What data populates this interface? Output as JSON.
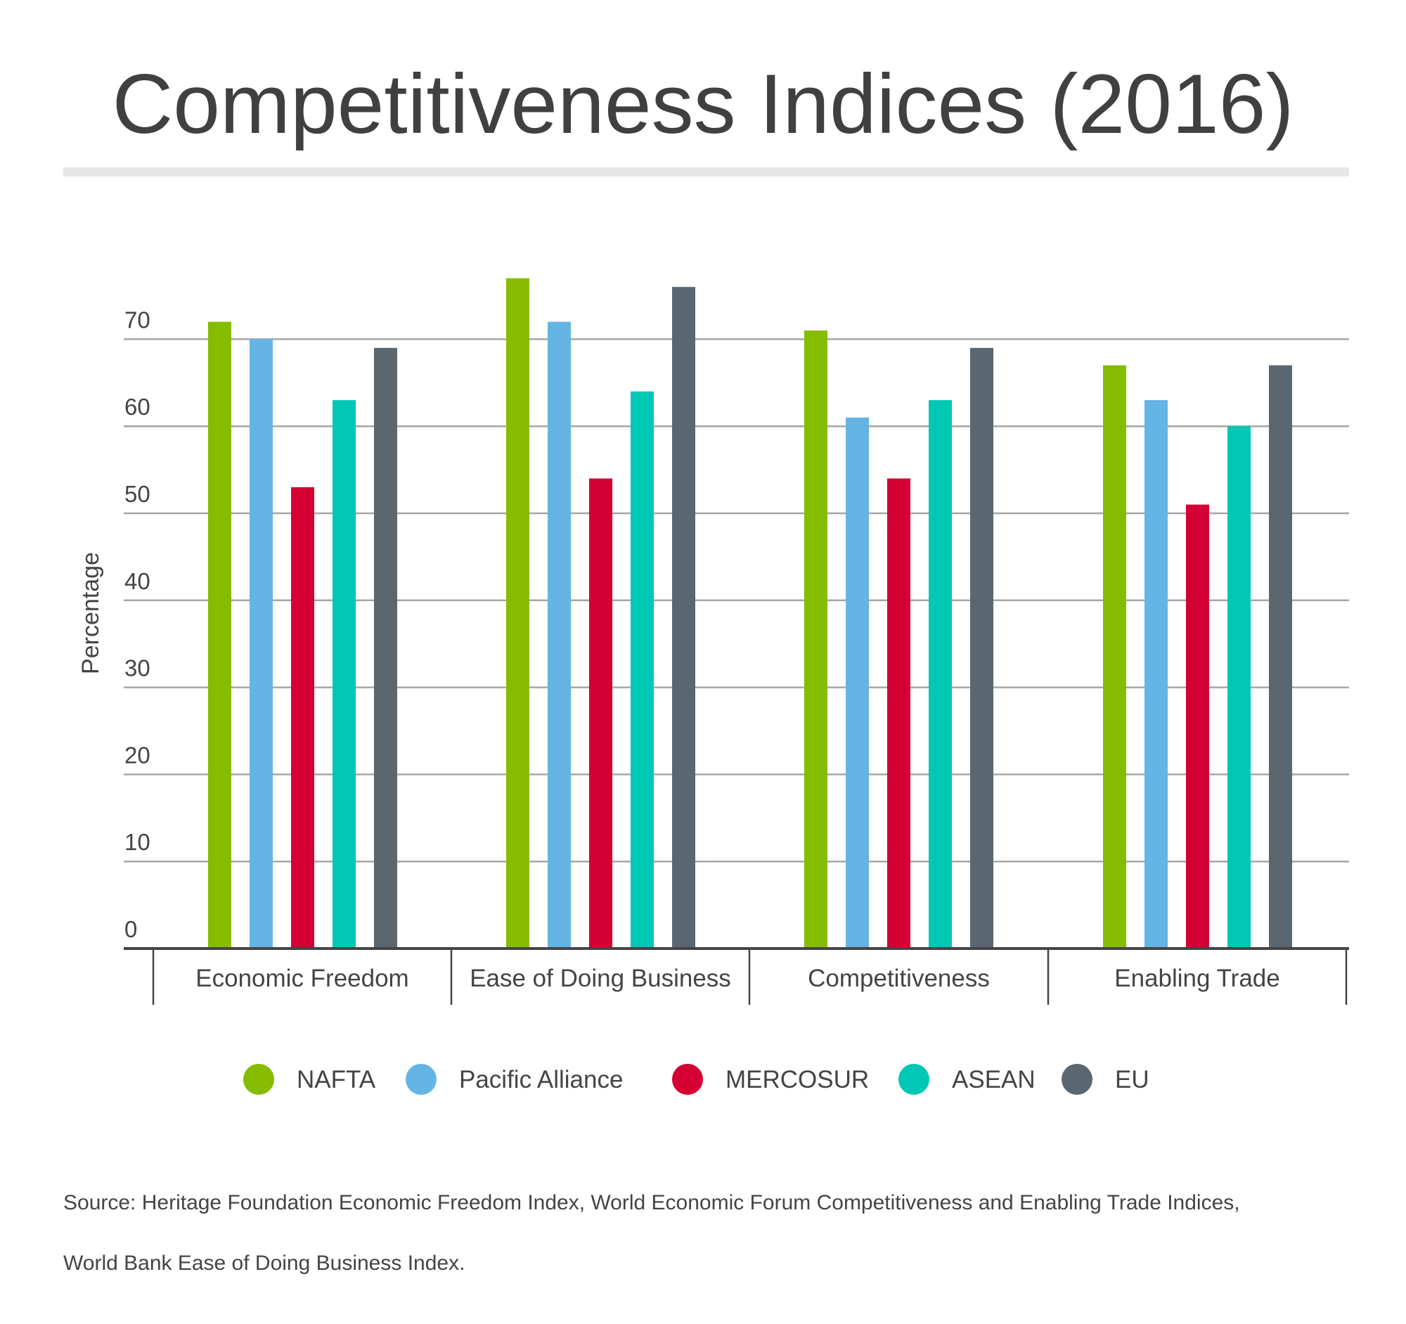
{
  "title": "Competitiveness Indices (2016)",
  "source": [
    "Source: Heritage Foundation Economic Freedom Index, World Economic Forum Competitiveness and Enabling Trade Indices,",
    "World Bank Ease of Doing Business Index."
  ],
  "chart_data": {
    "type": "bar",
    "title": "Competitiveness Indices (2016)",
    "xlabel": "",
    "ylabel": "Percentage",
    "ylim": [
      0,
      80
    ],
    "yticks": [
      0,
      10,
      20,
      30,
      40,
      50,
      60,
      70
    ],
    "grid": true,
    "legend": "bottom",
    "categories": [
      "Economic Freedom",
      "Ease of Doing Business",
      "Competitiveness",
      "Enabling Trade"
    ],
    "series": [
      {
        "name": "NAFTA",
        "color": "#86bc00",
        "values": [
          72,
          77,
          71,
          67
        ]
      },
      {
        "name": "Pacific Alliance",
        "color": "#64b4e4",
        "values": [
          70,
          72,
          61,
          63
        ]
      },
      {
        "name": "MERCOSUR",
        "color": "#d40034",
        "values": [
          53,
          54,
          54,
          51
        ]
      },
      {
        "name": "ASEAN",
        "color": "#00c8b4",
        "values": [
          63,
          64,
          63,
          60
        ]
      },
      {
        "name": "EU",
        "color": "#5a6670",
        "values": [
          69,
          76,
          69,
          67
        ]
      }
    ]
  }
}
